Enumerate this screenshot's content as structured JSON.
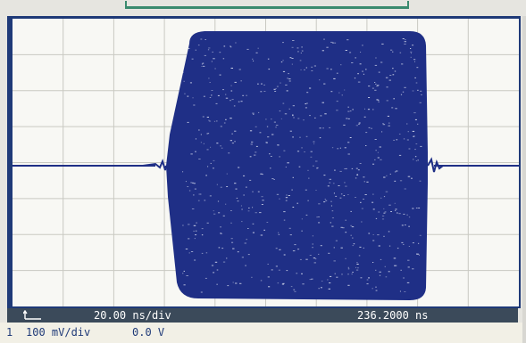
{
  "colors": {
    "trace": "#1f2f86",
    "grid": "#c9c9c2",
    "status_bg": "#3b4a5a",
    "status_fg": "#ffffff",
    "channel_fg": "#1f3a78"
  },
  "status": {
    "timebase": "20.00 ns/div",
    "delay": "236.2000 ns"
  },
  "channel": {
    "number": "1",
    "scale": "100 mV/div",
    "offset": "0.0 V"
  },
  "icons": {
    "ground": "ground-marker-icon"
  }
}
